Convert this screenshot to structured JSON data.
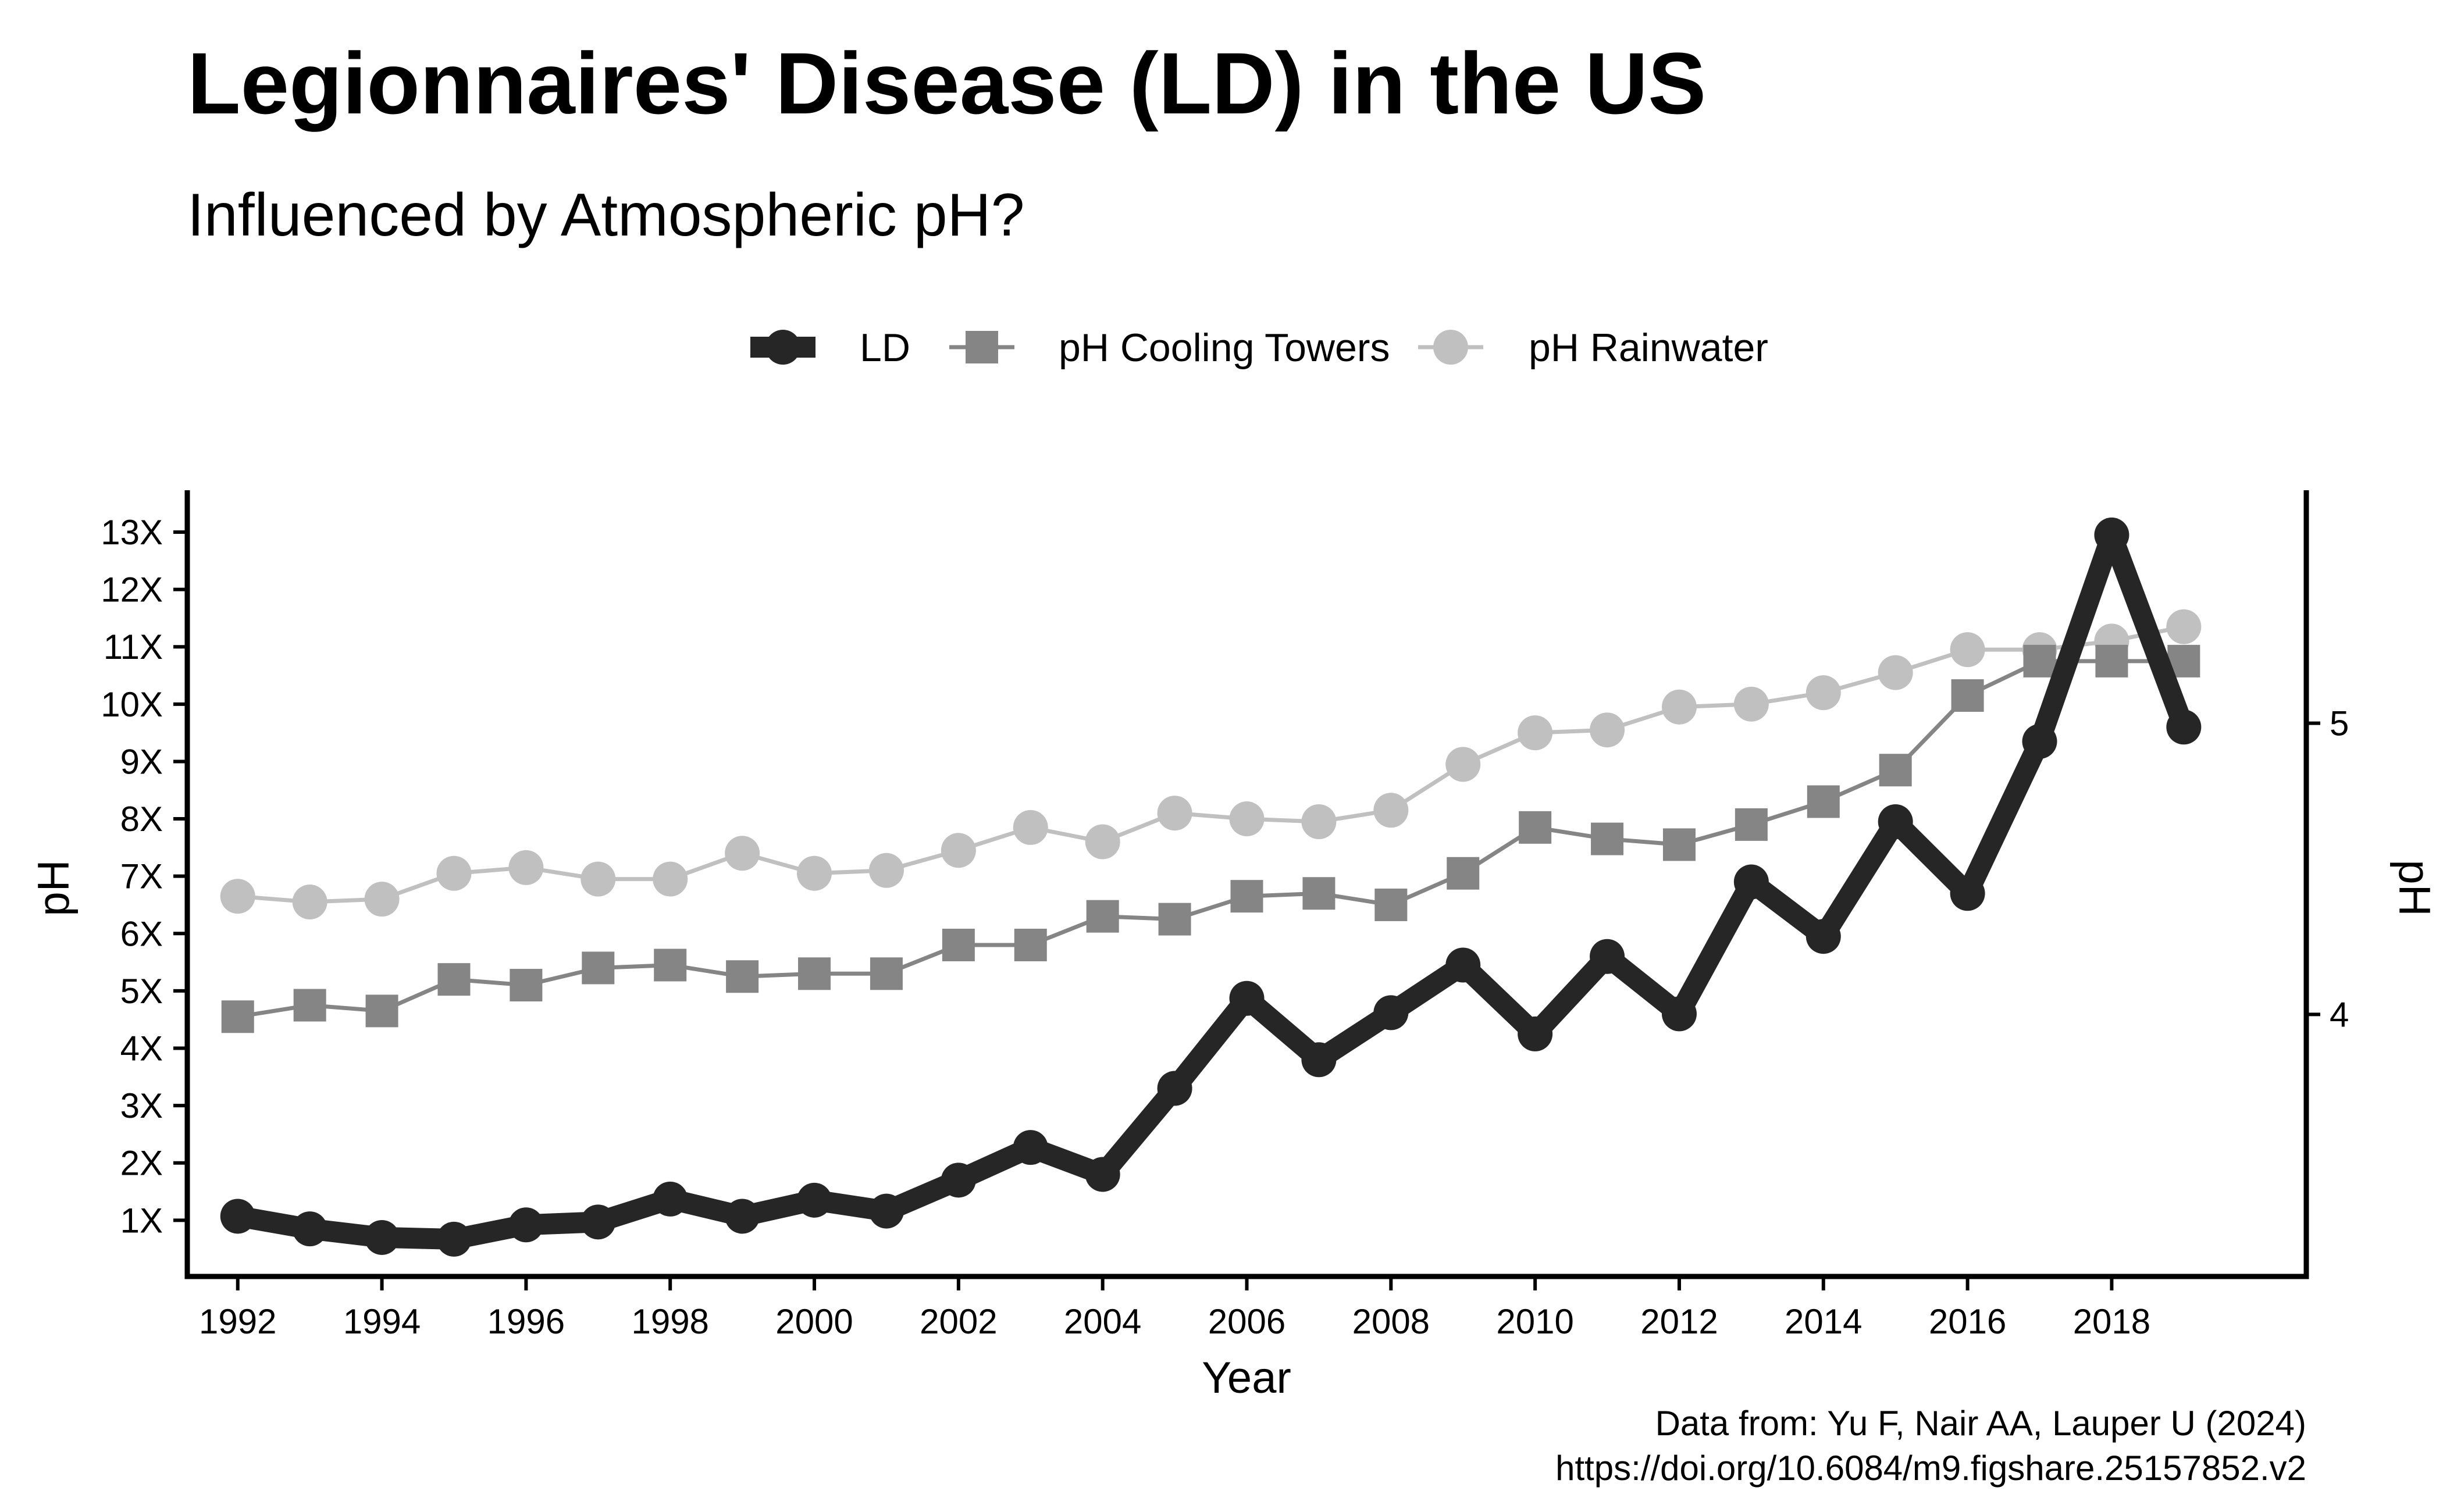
{
  "chart_data": {
    "type": "line",
    "title": "Legionnaires' Disease (LD) in the US",
    "subtitle": "Influenced by Atmospheric pH?",
    "xlabel": "Year",
    "ylabel_left": "pH",
    "ylabel_right": "pH",
    "caption_lines": [
      "Data from: Yu F, Nair AA, Lauper U (2024)",
      "https://doi.org/10.6084/m9.figshare.25157852.v2"
    ],
    "legend_position": "top-center",
    "grid": false,
    "x": [
      1992,
      1993,
      1994,
      1995,
      1996,
      1997,
      1998,
      1999,
      2000,
      2001,
      2002,
      2003,
      2004,
      2005,
      2006,
      2007,
      2008,
      2009,
      2010,
      2011,
      2012,
      2013,
      2014,
      2015,
      2016,
      2017,
      2018,
      2019
    ],
    "x_ticks": [
      "1992",
      "1994",
      "1996",
      "1998",
      "2000",
      "2002",
      "2004",
      "2006",
      "2008",
      "2010",
      "2012",
      "2014",
      "2016",
      "2018"
    ],
    "xlim": [
      1991.3,
      2020.7
    ],
    "left_axis": {
      "ticks": [
        "1X",
        "2X",
        "3X",
        "4X",
        "5X",
        "6X",
        "7X",
        "8X",
        "9X",
        "10X",
        "11X",
        "12X",
        "13X"
      ],
      "tick_values": [
        1,
        2,
        3,
        4,
        5,
        6,
        7,
        8,
        9,
        10,
        11,
        12,
        13
      ],
      "ylim": [
        0.02,
        13.73
      ]
    },
    "right_axis": {
      "ticks": [
        "4",
        "5"
      ],
      "tick_values": [
        4,
        5
      ],
      "ylim": [
        3.1,
        5.8
      ]
    },
    "series": [
      {
        "name": "LD",
        "axis": "left",
        "color": "#262626",
        "marker": "circle",
        "values": [
          1.07,
          0.85,
          0.7,
          0.67,
          0.92,
          0.97,
          1.37,
          1.07,
          1.35,
          1.16,
          1.7,
          2.27,
          1.8,
          3.3,
          4.87,
          3.8,
          4.62,
          5.45,
          4.25,
          5.6,
          4.6,
          6.9,
          5.95,
          7.95,
          6.7,
          9.35,
          12.95,
          9.6
        ]
      },
      {
        "name": "pH Cooling Towers",
        "axis": "left",
        "color": "#858585",
        "marker": "square",
        "values": [
          4.55,
          4.75,
          4.65,
          5.2,
          5.1,
          5.4,
          5.45,
          5.25,
          5.3,
          5.3,
          5.8,
          5.8,
          6.3,
          6.25,
          6.65,
          6.7,
          6.5,
          7.05,
          7.85,
          7.65,
          7.55,
          7.9,
          8.3,
          8.85,
          10.15,
          10.75,
          10.75,
          10.75
        ]
      },
      {
        "name": "pH Rainwater",
        "axis": "left",
        "color": "#c0c0c0",
        "marker": "circle",
        "values": [
          6.65,
          6.55,
          6.6,
          7.05,
          7.15,
          6.95,
          6.95,
          7.4,
          7.05,
          7.1,
          7.45,
          7.85,
          7.6,
          8.1,
          8.0,
          7.95,
          8.15,
          8.95,
          9.5,
          9.55,
          9.95,
          10.0,
          10.2,
          10.55,
          10.95,
          10.95,
          11.1,
          11.35
        ]
      }
    ]
  }
}
